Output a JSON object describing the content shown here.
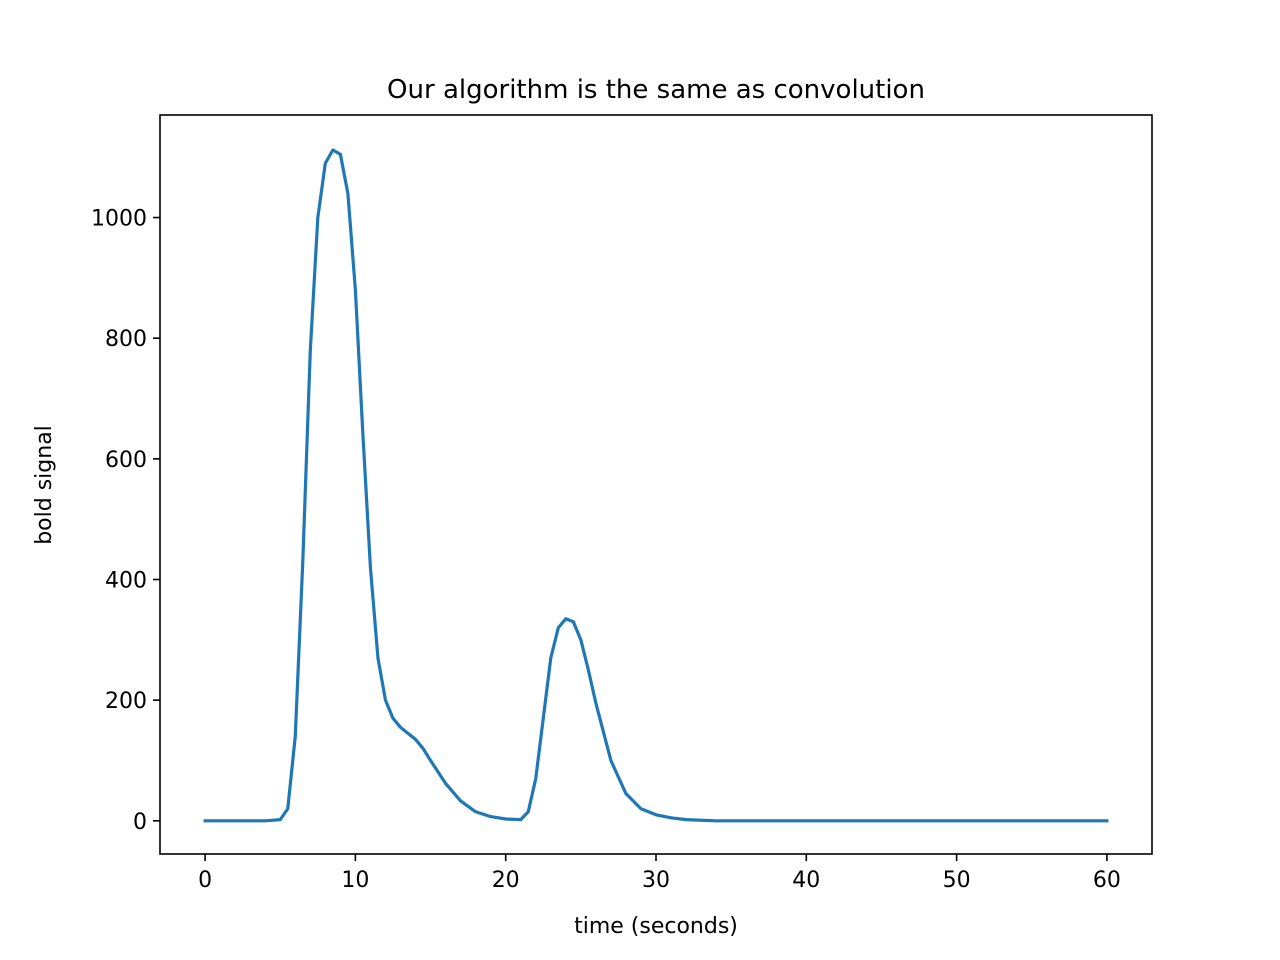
{
  "chart_data": {
    "type": "line",
    "title": "Our algorithm is the same as convolution",
    "xlabel": "time (seconds)",
    "ylabel": "bold signal",
    "xlim": [
      -3,
      63
    ],
    "ylim": [
      -55,
      1170
    ],
    "xticks": [
      0,
      10,
      20,
      30,
      40,
      50,
      60
    ],
    "yticks": [
      0,
      200,
      400,
      600,
      800,
      1000
    ],
    "grid": false,
    "series": [
      {
        "color": "#1f77b4",
        "x": [
          0,
          1,
          2,
          3,
          4,
          5,
          5.5,
          6,
          6.5,
          7,
          7.5,
          8,
          8.5,
          9,
          9.5,
          10,
          10.5,
          11,
          11.5,
          12,
          12.5,
          13,
          13.5,
          14,
          14.5,
          15,
          16,
          17,
          18,
          19,
          20,
          21,
          21.5,
          22,
          22.5,
          23,
          23.5,
          24,
          24.5,
          25,
          25.5,
          26,
          27,
          28,
          29,
          30,
          31,
          32,
          33,
          34,
          35,
          40,
          45,
          50,
          55,
          60
        ],
        "y": [
          0,
          0,
          0,
          0,
          0,
          2,
          20,
          140,
          430,
          780,
          1000,
          1090,
          1112,
          1105,
          1040,
          880,
          640,
          420,
          270,
          200,
          170,
          155,
          145,
          135,
          120,
          100,
          62,
          33,
          15,
          7,
          3,
          2,
          15,
          70,
          170,
          270,
          320,
          335,
          330,
          300,
          250,
          195,
          100,
          45,
          20,
          10,
          5,
          2,
          1,
          0,
          0,
          0,
          0,
          0,
          0,
          0
        ]
      }
    ]
  }
}
